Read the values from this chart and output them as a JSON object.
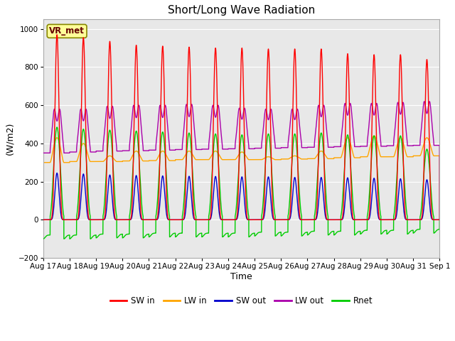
{
  "title": "Short/Long Wave Radiation",
  "ylabel": "(W/m2)",
  "xlabel": "Time",
  "ylim": [
    -200,
    1050
  ],
  "yticks": [
    -200,
    0,
    200,
    400,
    600,
    800,
    1000
  ],
  "n_days": 15,
  "xtick_labels": [
    "Aug 17",
    "Aug 18",
    "Aug 19",
    "Aug 20",
    "Aug 21",
    "Aug 22",
    "Aug 23",
    "Aug 24",
    "Aug 25",
    "Aug 26",
    "Aug 27",
    "Aug 28",
    "Aug 29",
    "Aug 30",
    "Aug 31",
    "Sep 1"
  ],
  "station_label": "VR_met",
  "background_color": "#e8e8e8",
  "line_colors": {
    "SW_in": "#ff0000",
    "LW_in": "#ffa500",
    "SW_out": "#0000cc",
    "LW_out": "#aa00aa",
    "Rnet": "#00cc00"
  },
  "legend_labels": [
    "SW in",
    "LW in",
    "SW out",
    "LW out",
    "Rnet"
  ],
  "title_fontsize": 11,
  "axis_label_fontsize": 9,
  "tick_fontsize": 7.5
}
